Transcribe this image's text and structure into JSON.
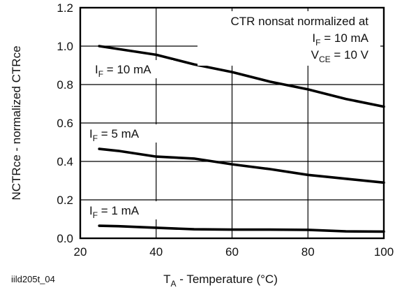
{
  "chart_data": {
    "type": "line",
    "ylabel": "NCTRce - normalized CTRce",
    "xlabel_main": "T",
    "xlabel_sub": "A",
    "xlabel_rest": " - Temperature (°C)",
    "figure_id": "iild205t_04",
    "xlim": [
      20,
      100
    ],
    "ylim": [
      0.0,
      1.2
    ],
    "x_ticks": [
      "20",
      "40",
      "60",
      "80",
      "100"
    ],
    "y_ticks": [
      "0.0",
      "0.2",
      "0.4",
      "0.6",
      "0.8",
      "1.0",
      "1.2"
    ],
    "grid": true,
    "annotation": {
      "line1": "CTR nonsat normalized at",
      "line2_main": "I",
      "line2_sub": "F",
      "line2_rest": " = 10 mA",
      "line3_main": "V",
      "line3_sub": "CE",
      "line3_rest": " = 10 V"
    },
    "series": [
      {
        "label_main": "I",
        "label_sub": "F",
        "label_rest": " = 10 mA",
        "x": [
          25,
          30,
          40,
          50,
          60,
          70,
          80,
          90,
          100
        ],
        "y": [
          1.0,
          0.985,
          0.955,
          0.905,
          0.865,
          0.815,
          0.775,
          0.725,
          0.685
        ]
      },
      {
        "label_main": "I",
        "label_sub": "F",
        "label_rest": " = 5 mA",
        "x": [
          25,
          30,
          40,
          50,
          60,
          70,
          80,
          90,
          100
        ],
        "y": [
          0.465,
          0.455,
          0.425,
          0.415,
          0.385,
          0.36,
          0.33,
          0.31,
          0.29
        ]
      },
      {
        "label_main": "I",
        "label_sub": "F",
        "label_rest": " = 1 mA",
        "x": [
          25,
          30,
          40,
          50,
          60,
          70,
          80,
          90,
          100
        ],
        "y": [
          0.065,
          0.063,
          0.055,
          0.047,
          0.045,
          0.045,
          0.044,
          0.036,
          0.035
        ]
      }
    ]
  }
}
